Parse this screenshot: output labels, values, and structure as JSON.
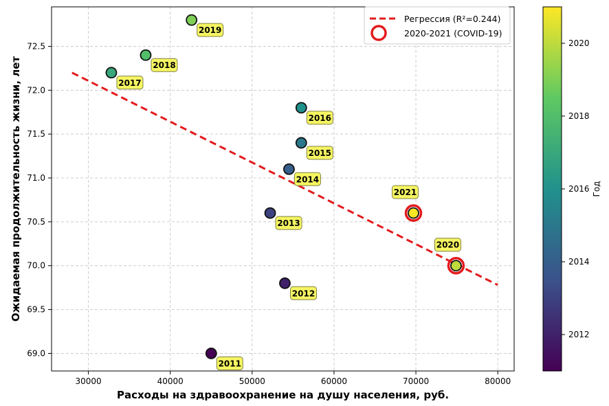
{
  "chart_data": {
    "type": "scatter",
    "xlabel": "Расходы на здравоохранение на душу населения, руб.",
    "ylabel": "Ожидаемая продолжительность жизни, лет",
    "xlim": [
      25500,
      82000
    ],
    "ylim": [
      68.8,
      72.95
    ],
    "x_ticks": [
      30000,
      40000,
      50000,
      60000,
      70000,
      80000
    ],
    "y_ticks": [
      69.0,
      69.5,
      70.0,
      70.5,
      71.0,
      71.5,
      72.0,
      72.5
    ],
    "grid": true,
    "points": [
      {
        "label": "2011",
        "year": 2011,
        "x": 45000,
        "y": 69.0
      },
      {
        "label": "2012",
        "year": 2012,
        "x": 54000,
        "y": 69.8
      },
      {
        "label": "2013",
        "year": 2013,
        "x": 52200,
        "y": 70.6
      },
      {
        "label": "2014",
        "year": 2014,
        "x": 54500,
        "y": 71.1
      },
      {
        "label": "2015",
        "year": 2015,
        "x": 56000,
        "y": 71.4
      },
      {
        "label": "2016",
        "year": 2016,
        "x": 56000,
        "y": 71.8
      },
      {
        "label": "2017",
        "year": 2017,
        "x": 32800,
        "y": 72.2
      },
      {
        "label": "2018",
        "year": 2018,
        "x": 37000,
        "y": 72.4
      },
      {
        "label": "2019",
        "year": 2019,
        "x": 42600,
        "y": 72.8
      },
      {
        "label": "2020",
        "year": 2020,
        "x": 74900,
        "y": 70.0
      },
      {
        "label": "2021",
        "year": 2021,
        "x": 69700,
        "y": 70.6
      }
    ],
    "regression": {
      "label": "Регрессия (R²=0.244)",
      "x": [
        28000,
        80000
      ],
      "y": [
        72.2,
        69.78
      ],
      "color": "#e31a1c",
      "style": "dashed"
    },
    "highlight": {
      "label": "2020-2021 (COVID-19)",
      "years": [
        2020,
        2021
      ],
      "color": "#e31a1c"
    },
    "legend_position": "top-right",
    "colorbar": {
      "label": "Год",
      "range": [
        2011,
        2021
      ],
      "ticks": [
        2012,
        2014,
        2016,
        2018,
        2020
      ],
      "colormap": "viridis"
    },
    "label_box_color": "#f5f55a"
  }
}
